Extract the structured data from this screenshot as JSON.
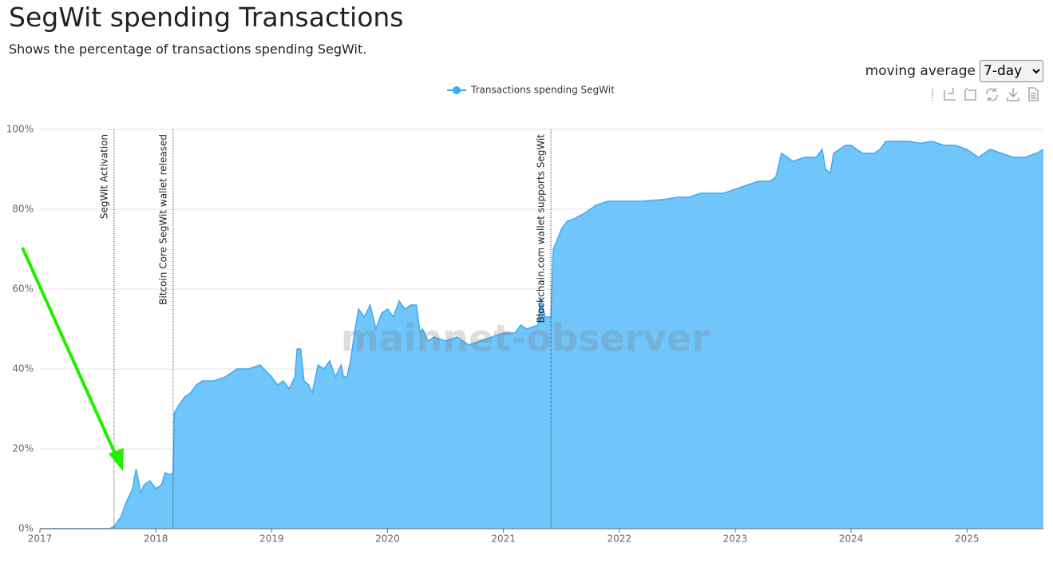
{
  "page": {
    "title": "SegWit spending Transactions",
    "subtitle": "Shows the percentage of transactions spending SegWit.",
    "moving_average_label": "moving average",
    "moving_average_options": [
      "7-day"
    ]
  },
  "chart_data": {
    "type": "area",
    "watermark": "mainnet-observer",
    "xlim": [
      2017,
      2025.66
    ],
    "xticks": [
      2017,
      2018,
      2019,
      2020,
      2021,
      2022,
      2023,
      2024,
      2025
    ],
    "ylim": [
      0,
      100
    ],
    "yticks": [
      {
        "value": 0,
        "label": "0%"
      },
      {
        "value": 20,
        "label": "20%"
      },
      {
        "value": 40,
        "label": "40%"
      },
      {
        "value": 60,
        "label": "60%"
      },
      {
        "value": 80,
        "label": "80%"
      },
      {
        "value": 100,
        "label": "100%"
      }
    ],
    "grid": true,
    "legend": "top",
    "annotations": [
      {
        "x": 2017.64,
        "label": "SegWit Activation"
      },
      {
        "x": 2018.15,
        "label": "Bitcoin Core SegWit wallet released"
      },
      {
        "x": 2021.41,
        "label": "Blockchain.com wallet supports SegWit"
      }
    ],
    "series": [
      {
        "name": "Transactions spending SegWit",
        "color": "#3eaaf2",
        "fill": "#70c5fb",
        "x": [
          2017.0,
          2017.6,
          2017.64,
          2017.7,
          2017.75,
          2017.8,
          2017.83,
          2017.87,
          2017.9,
          2017.95,
          2018.0,
          2018.05,
          2018.08,
          2018.12,
          2018.15,
          2018.16,
          2018.2,
          2018.25,
          2018.3,
          2018.35,
          2018.4,
          2018.5,
          2018.6,
          2018.7,
          2018.8,
          2018.9,
          2019.0,
          2019.05,
          2019.1,
          2019.15,
          2019.2,
          2019.22,
          2019.25,
          2019.28,
          2019.32,
          2019.35,
          2019.4,
          2019.45,
          2019.5,
          2019.55,
          2019.6,
          2019.62,
          2019.65,
          2019.68,
          2019.72,
          2019.75,
          2019.8,
          2019.85,
          2019.9,
          2019.95,
          2020.0,
          2020.05,
          2020.1,
          2020.15,
          2020.2,
          2020.25,
          2020.28,
          2020.3,
          2020.35,
          2020.4,
          2020.5,
          2020.6,
          2020.7,
          2020.8,
          2020.9,
          2021.0,
          2021.1,
          2021.15,
          2021.2,
          2021.3,
          2021.32,
          2021.36,
          2021.41,
          2021.43,
          2021.46,
          2021.5,
          2021.55,
          2021.6,
          2021.7,
          2021.8,
          2021.9,
          2022.0,
          2022.2,
          2022.4,
          2022.5,
          2022.6,
          2022.7,
          2022.8,
          2022.9,
          2023.0,
          2023.1,
          2023.2,
          2023.3,
          2023.35,
          2023.4,
          2023.45,
          2023.5,
          2023.6,
          2023.7,
          2023.75,
          2023.78,
          2023.82,
          2023.85,
          2023.9,
          2023.95,
          2024.0,
          2024.05,
          2024.1,
          2024.2,
          2024.25,
          2024.3,
          2024.4,
          2024.5,
          2024.6,
          2024.7,
          2024.8,
          2024.9,
          2025.0,
          2025.1,
          2025.15,
          2025.2,
          2025.3,
          2025.4,
          2025.5,
          2025.6,
          2025.66
        ],
        "values": [
          0,
          0,
          0.5,
          3,
          7,
          10,
          15,
          9,
          11,
          12,
          10,
          11,
          14,
          13.5,
          14,
          29,
          31,
          33,
          34,
          36,
          37,
          37,
          38,
          40,
          40,
          41,
          38,
          36,
          37,
          35,
          38,
          45,
          45,
          37,
          36,
          34,
          41,
          40,
          42,
          38,
          41,
          38,
          38,
          42,
          50,
          55,
          53,
          56,
          50,
          54,
          55,
          53,
          57,
          55,
          56,
          56,
          49,
          50,
          47,
          48,
          47,
          48,
          46,
          47,
          48,
          49,
          49,
          51,
          50,
          51,
          58,
          53,
          53,
          70,
          72,
          75,
          77,
          77.5,
          79,
          81,
          82,
          82,
          82,
          82.5,
          83,
          83,
          84,
          84,
          84,
          85,
          86,
          87,
          87,
          88,
          94,
          93,
          92,
          93,
          93,
          95,
          90,
          89,
          94,
          95,
          96,
          96,
          95,
          94,
          94,
          95,
          97,
          97,
          97,
          96.5,
          97,
          96,
          96,
          95,
          93,
          94,
          95,
          94,
          93,
          93,
          94,
          95
        ]
      }
    ]
  }
}
